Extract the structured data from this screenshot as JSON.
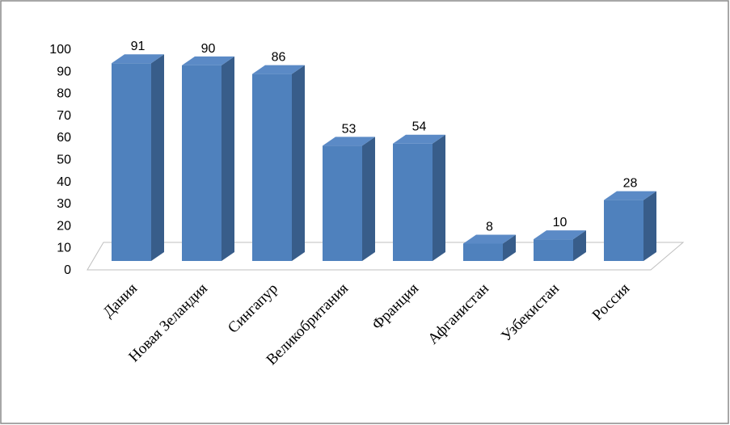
{
  "chart_data": {
    "type": "bar3d",
    "categories": [
      "Дания",
      "Новая Зеландия",
      "Сингапур",
      "Великобритания",
      "Франция",
      "Афганистан",
      "Узбекистан",
      "Россия"
    ],
    "values": [
      91,
      90,
      86,
      53,
      54,
      8,
      10,
      28
    ],
    "color": "#4f81bd",
    "ylim": [
      0,
      100
    ],
    "yticks": [
      0,
      10,
      20,
      30,
      40,
      50,
      60,
      70,
      80,
      90,
      100
    ],
    "grid": false
  }
}
